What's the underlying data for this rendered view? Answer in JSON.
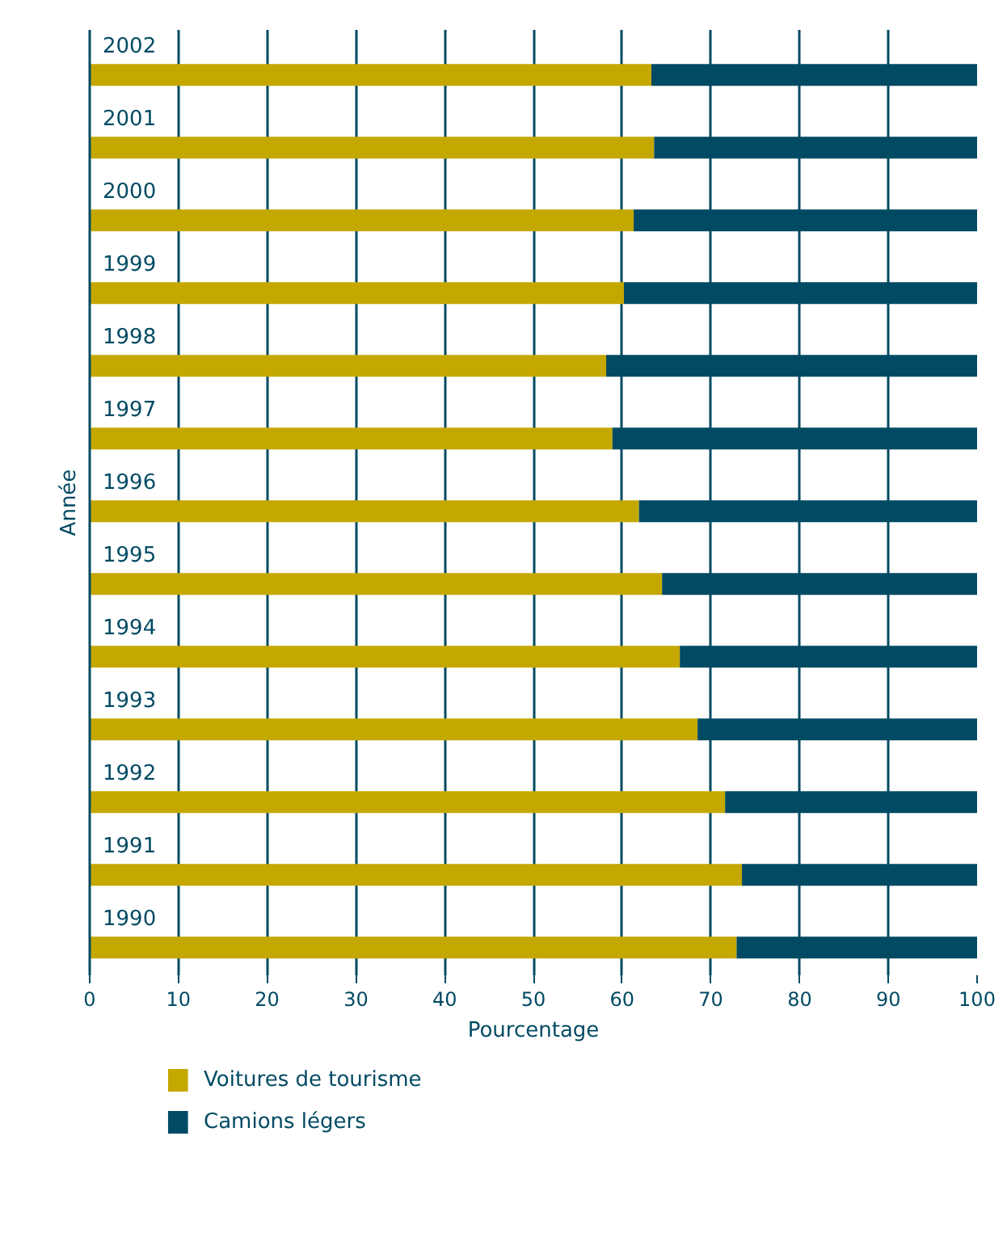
{
  "chart_data": {
    "type": "bar",
    "orientation": "horizontal",
    "stacked": true,
    "categories": [
      "2002",
      "2001",
      "2000",
      "1999",
      "1998",
      "1997",
      "1996",
      "1995",
      "1994",
      "1993",
      "1992",
      "1991",
      "1990"
    ],
    "series": [
      {
        "name": "Voitures de tourisme",
        "color": "#c4a800",
        "values": [
          63.3,
          63.6,
          61.3,
          60.2,
          58.2,
          58.9,
          61.9,
          64.5,
          66.5,
          68.5,
          71.6,
          73.5,
          72.9
        ]
      },
      {
        "name": "Camions légers",
        "color": "#004a63",
        "values": [
          36.7,
          36.4,
          38.7,
          39.8,
          41.8,
          41.1,
          38.1,
          35.5,
          33.5,
          31.5,
          28.4,
          26.5,
          27.1
        ]
      }
    ],
    "xlabel": "Pourcentage",
    "ylabel": "Année",
    "xlim": [
      0,
      100
    ],
    "xticks": [
      0,
      10,
      20,
      30,
      40,
      50,
      60,
      70,
      80,
      90,
      100
    ],
    "grid": "x",
    "legend": "bottom"
  }
}
